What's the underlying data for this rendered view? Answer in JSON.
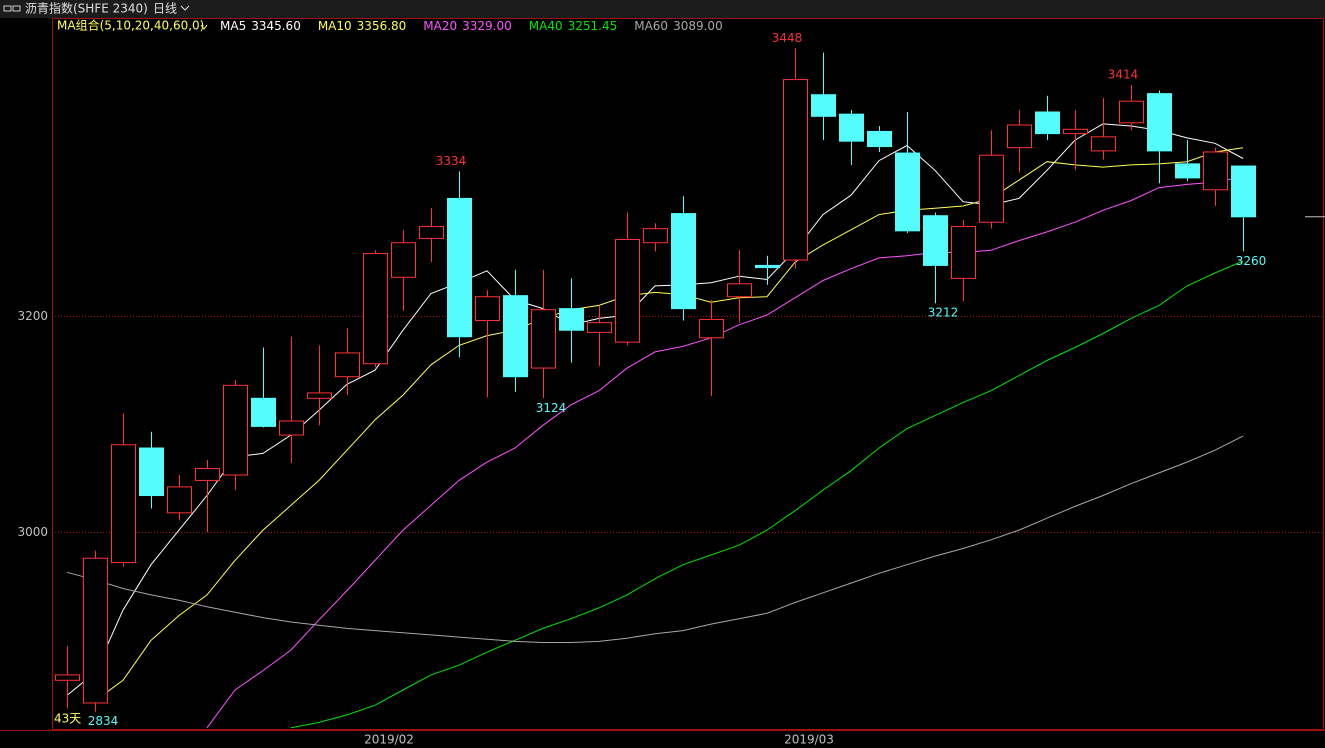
{
  "header": {
    "title": "沥青指数(SHFE 2340)",
    "period": "日线"
  },
  "chart_data": {
    "type": "candlestick",
    "ma_group_label": "MA组合(5,10,20,40,60,0)",
    "period_label": "43天",
    "categories": [
      null,
      null,
      null,
      null,
      null,
      null,
      null,
      null,
      null,
      null,
      null,
      null,
      "2019/02",
      null,
      null,
      null,
      null,
      null,
      null,
      null,
      null,
      null,
      null,
      null,
      null,
      null,
      null,
      "2019/03",
      null,
      null,
      null,
      null,
      null,
      null,
      null,
      null,
      null,
      null,
      null,
      null,
      null,
      null,
      null
    ],
    "open": [
      2863,
      2842,
      2972,
      3078,
      3018,
      3048,
      3053,
      3124,
      3090,
      3124,
      3144,
      3156,
      3236,
      3272,
      3309,
      3196,
      3219,
      3152,
      3207,
      3185,
      3176,
      3268,
      3295,
      3180,
      3218,
      3247,
      3252,
      3405,
      3387,
      3371,
      3351,
      3293,
      3235,
      3287,
      3356,
      3389,
      3369,
      3353,
      3379,
      3406,
      3341,
      3317,
      3339
    ],
    "high": [
      2895,
      2983,
      3110,
      3093,
      3053,
      3067,
      3141,
      3171,
      3181,
      3173,
      3189,
      3261,
      3280,
      3300,
      3334,
      3224,
      3243,
      3243,
      3235,
      3210,
      3296,
      3286,
      3311,
      3215,
      3261,
      3256,
      3448,
      3444,
      3391,
      3376,
      3389,
      3296,
      3289,
      3372,
      3391,
      3404,
      3391,
      3402,
      3414,
      3409,
      3363,
      3356,
      3339
    ],
    "low": [
      2837,
      2834,
      2968,
      3022,
      3011,
      3000,
      3039,
      3097,
      3064,
      3099,
      3127,
      3153,
      3205,
      3250,
      3162,
      3125,
      3130,
      3124,
      3157,
      3154,
      3173,
      3260,
      3196,
      3126,
      3194,
      3229,
      3244,
      3363,
      3340,
      3352,
      3277,
      3212,
      3214,
      3281,
      3333,
      3363,
      3335,
      3345,
      3372,
      3323,
      3325,
      3302,
      3260
    ],
    "close": [
      2868,
      2976,
      3081,
      3034,
      3042,
      3059,
      3136,
      3098,
      3103,
      3129,
      3166,
      3258,
      3268,
      3283,
      3181,
      3218,
      3144,
      3206,
      3187,
      3194,
      3271,
      3281,
      3207,
      3197,
      3230,
      3245,
      3419,
      3385,
      3362,
      3357,
      3279,
      3247,
      3283,
      3349,
      3377,
      3369,
      3373,
      3366,
      3399,
      3353,
      3328,
      3352,
      3292
    ],
    "high_labels": [
      null,
      null,
      null,
      null,
      null,
      null,
      null,
      null,
      null,
      null,
      null,
      null,
      null,
      null,
      "3334",
      null,
      null,
      null,
      null,
      null,
      null,
      null,
      null,
      null,
      null,
      null,
      "3448",
      null,
      null,
      null,
      null,
      null,
      null,
      null,
      null,
      null,
      null,
      null,
      "3414",
      null,
      null,
      null,
      null
    ],
    "low_labels": [
      null,
      "2834",
      null,
      null,
      null,
      null,
      null,
      null,
      null,
      null,
      null,
      null,
      null,
      null,
      null,
      null,
      null,
      "3124",
      null,
      null,
      null,
      null,
      null,
      null,
      null,
      null,
      null,
      null,
      null,
      null,
      null,
      "3212",
      null,
      null,
      null,
      null,
      null,
      null,
      null,
      null,
      null,
      null,
      "3260"
    ],
    "up_color": "#ff3232",
    "down_color": "#54fcfc",
    "series": [
      {
        "name": "MA5",
        "color": "#ffffff",
        "last_label": "3345.60",
        "values": [
          2849,
          2870,
          2928,
          2970,
          3002,
          3034,
          3070,
          3073,
          3090,
          3113,
          3137,
          3150,
          3187,
          3221,
          3231,
          3242,
          3215,
          3207,
          3192,
          3198,
          3201,
          3228,
          3229,
          3231,
          3237,
          3234,
          3261,
          3294,
          3312,
          3344,
          3358,
          3335,
          3306,
          3303,
          3309,
          3335,
          3363,
          3378,
          3376,
          3372,
          3365,
          3360,
          3346
        ]
      },
      {
        "name": "MA10",
        "color": "#ffff54",
        "last_label": "3356.80",
        "values": [
          null,
          2844,
          2863,
          2900,
          2923,
          2942,
          2974,
          3002,
          3025,
          3048,
          3076,
          3104,
          3127,
          3155,
          3173,
          3182,
          3187,
          3198,
          3206,
          3210,
          3219,
          3222,
          3220,
          3213,
          3217,
          3218,
          3250,
          3266,
          3280,
          3294,
          3298,
          3300,
          3302,
          3309,
          3326,
          3343,
          3340,
          3338,
          3340,
          3341,
          3343,
          3352,
          3356
        ]
      },
      {
        "name": "MA20",
        "color": "#ff54ff",
        "last_label": "3329.00",
        "values": [
          null,
          null,
          null,
          null,
          null,
          2819,
          2854,
          2872,
          2891,
          2919,
          2946,
          2974,
          3002,
          3025,
          3048,
          3065,
          3078,
          3099,
          3118,
          3131,
          3152,
          3167,
          3172,
          3180,
          3192,
          3201,
          3217,
          3233,
          3244,
          3254,
          3256,
          3259,
          3259,
          3261,
          3270,
          3278,
          3287,
          3298,
          3307,
          3319,
          3322,
          3324,
          3329
        ]
      },
      {
        "name": "MA40",
        "color": "#00e600",
        "last_label": "3251.45",
        "values": [
          null,
          null,
          null,
          null,
          null,
          null,
          null,
          null,
          2819,
          2824,
          2831,
          2840,
          2854,
          2868,
          2877,
          2889,
          2900,
          2911,
          2920,
          2930,
          2942,
          2957,
          2970,
          2979,
          2988,
          3002,
          3020,
          3039,
          3057,
          3078,
          3096,
          3108,
          3120,
          3131,
          3145,
          3159,
          3171,
          3184,
          3198,
          3210,
          3228,
          3240,
          3251
        ]
      },
      {
        "name": "MA60",
        "color": "#a8a8a8",
        "last_label": "3089.00",
        "values": [
          2963,
          2956,
          2948,
          2942,
          2937,
          2931,
          2926,
          2921,
          2917,
          2914,
          2911,
          2909,
          2907,
          2905,
          2903,
          2901,
          2899,
          2898,
          2898,
          2899,
          2902,
          2906,
          2909,
          2915,
          2920,
          2925,
          2935,
          2944,
          2953,
          2962,
          2970,
          2978,
          2985,
          2993,
          3002,
          3013,
          3024,
          3034,
          3045,
          3055,
          3065,
          3076,
          3089
        ]
      }
    ],
    "ylim": [
      2817,
      3476
    ],
    "yticks": [
      3000,
      3200
    ],
    "grid": true
  }
}
